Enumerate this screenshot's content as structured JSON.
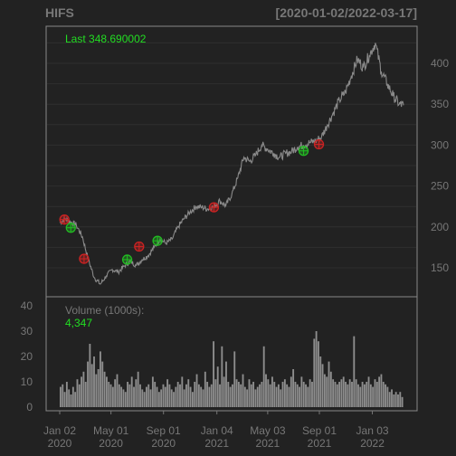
{
  "colors": {
    "background": "#222222",
    "panel_border": "#888888",
    "grid": "#2f2f2f",
    "price_line": "#8a8a8a",
    "volume_bar": "#8e8e8e",
    "label": "#777777",
    "title": "#777777",
    "accent_green": "#22dd22",
    "buy_marker": "#22bb22",
    "sell_marker": "#cc2222"
  },
  "header": {
    "symbol": "HIFS",
    "range": "[2020-01-02/2022-03-17]"
  },
  "chart_data": [
    {
      "type": "line",
      "name": "price",
      "annotation_label": "Last",
      "annotation_value": "348.690002",
      "ylim": [
        120,
        440
      ],
      "yticks": [
        150,
        200,
        250,
        300,
        350,
        400
      ],
      "x_start": "2020-01-02",
      "x_end": "2022-03-17",
      "points": [
        [
          "2020-01-02",
          205
        ],
        [
          "2020-01-15",
          210
        ],
        [
          "2020-01-28",
          206
        ],
        [
          "2020-02-10",
          202
        ],
        [
          "2020-02-24",
          188
        ],
        [
          "2020-03-09",
          160
        ],
        [
          "2020-03-23",
          138
        ],
        [
          "2020-04-06",
          130
        ],
        [
          "2020-04-20",
          140
        ],
        [
          "2020-05-04",
          148
        ],
        [
          "2020-05-18",
          145
        ],
        [
          "2020-06-01",
          152
        ],
        [
          "2020-06-15",
          158
        ],
        [
          "2020-06-29",
          153
        ],
        [
          "2020-07-13",
          160
        ],
        [
          "2020-07-27",
          165
        ],
        [
          "2020-08-10",
          175
        ],
        [
          "2020-08-24",
          185
        ],
        [
          "2020-09-07",
          180
        ],
        [
          "2020-09-21",
          185
        ],
        [
          "2020-10-05",
          200
        ],
        [
          "2020-10-19",
          210
        ],
        [
          "2020-11-02",
          218
        ],
        [
          "2020-11-16",
          225
        ],
        [
          "2020-11-30",
          224
        ],
        [
          "2020-12-14",
          222
        ],
        [
          "2020-12-28",
          225
        ],
        [
          "2021-01-11",
          232
        ],
        [
          "2021-01-25",
          226
        ],
        [
          "2021-02-08",
          240
        ],
        [
          "2021-02-22",
          260
        ],
        [
          "2021-03-08",
          285
        ],
        [
          "2021-03-22",
          280
        ],
        [
          "2021-04-05",
          288
        ],
        [
          "2021-04-19",
          300
        ],
        [
          "2021-05-03",
          295
        ],
        [
          "2021-05-17",
          290
        ],
        [
          "2021-05-31",
          285
        ],
        [
          "2021-06-14",
          290
        ],
        [
          "2021-06-28",
          292
        ],
        [
          "2021-07-12",
          298
        ],
        [
          "2021-07-26",
          300
        ],
        [
          "2021-08-09",
          303
        ],
        [
          "2021-08-23",
          305
        ],
        [
          "2021-09-06",
          310
        ],
        [
          "2021-09-20",
          325
        ],
        [
          "2021-10-04",
          340
        ],
        [
          "2021-10-18",
          355
        ],
        [
          "2021-11-01",
          365
        ],
        [
          "2021-11-15",
          385
        ],
        [
          "2021-11-29",
          405
        ],
        [
          "2021-12-13",
          395
        ],
        [
          "2021-12-27",
          410
        ],
        [
          "2022-01-10",
          425
        ],
        [
          "2022-01-24",
          390
        ],
        [
          "2022-02-07",
          375
        ],
        [
          "2022-02-21",
          360
        ],
        [
          "2022-03-07",
          350
        ],
        [
          "2022-03-17",
          348.69
        ]
      ],
      "markers": [
        {
          "date": "2020-01-13",
          "price": 209,
          "kind": "sell"
        },
        {
          "date": "2020-01-28",
          "price": 199,
          "kind": "buy"
        },
        {
          "date": "2020-02-28",
          "price": 161,
          "kind": "sell"
        },
        {
          "date": "2020-06-08",
          "price": 160,
          "kind": "buy"
        },
        {
          "date": "2020-07-06",
          "price": 176,
          "kind": "sell"
        },
        {
          "date": "2020-08-18",
          "price": 183,
          "kind": "buy"
        },
        {
          "date": "2020-12-28",
          "price": 224,
          "kind": "sell"
        },
        {
          "date": "2021-07-26",
          "price": 293,
          "kind": "buy"
        },
        {
          "date": "2021-08-31",
          "price": 301,
          "kind": "sell"
        }
      ]
    },
    {
      "type": "bar",
      "name": "volume",
      "label": "Volume (1000s):",
      "last_value": "4,347",
      "ylim": [
        0,
        42
      ],
      "yticks": [
        0,
        10,
        20,
        30,
        40
      ],
      "values": [
        8,
        9,
        6,
        10,
        7,
        5,
        8,
        6,
        11,
        9,
        12,
        14,
        10,
        18,
        25,
        17,
        20,
        13,
        15,
        22,
        18,
        14,
        12,
        10,
        9,
        8,
        11,
        13,
        9,
        8,
        7,
        6,
        10,
        9,
        12,
        8,
        11,
        14,
        9,
        7,
        6,
        8,
        9,
        7,
        12,
        10,
        8,
        6,
        7,
        9,
        8,
        11,
        9,
        7,
        6,
        8,
        10,
        9,
        12,
        7,
        9,
        11,
        8,
        6,
        10,
        13,
        9,
        8,
        7,
        14,
        10,
        8,
        9,
        26,
        11,
        16,
        9,
        24,
        12,
        18,
        10,
        8,
        9,
        22,
        11,
        10,
        9,
        13,
        8,
        7,
        11,
        9,
        10,
        7,
        8,
        9,
        10,
        24,
        13,
        11,
        9,
        12,
        10,
        8,
        9,
        7,
        10,
        11,
        9,
        8,
        12,
        15,
        10,
        9,
        8,
        12,
        10,
        9,
        8,
        11,
        10,
        27,
        30,
        26,
        20,
        17,
        13,
        12,
        18,
        14,
        11,
        10,
        9,
        10,
        11,
        12,
        10,
        9,
        11,
        10,
        28,
        11,
        9,
        8,
        10,
        9,
        10,
        12,
        9,
        8,
        11,
        10,
        12,
        13,
        10,
        9,
        8,
        6,
        7,
        5,
        6,
        5,
        6,
        4
      ],
      "xticks": [
        {
          "date": "2020-01-02",
          "line1": "Jan 02",
          "line2": "2020"
        },
        {
          "date": "2020-05-01",
          "line1": "May 01",
          "line2": "2020"
        },
        {
          "date": "2020-09-01",
          "line1": "Sep 01",
          "line2": "2020"
        },
        {
          "date": "2021-01-04",
          "line1": "Jan 04",
          "line2": "2021"
        },
        {
          "date": "2021-05-03",
          "line1": "May 03",
          "line2": "2021"
        },
        {
          "date": "2021-09-01",
          "line1": "Sep 01",
          "line2": "2021"
        },
        {
          "date": "2022-01-03",
          "line1": "Jan 03",
          "line2": "2022"
        }
      ]
    }
  ]
}
